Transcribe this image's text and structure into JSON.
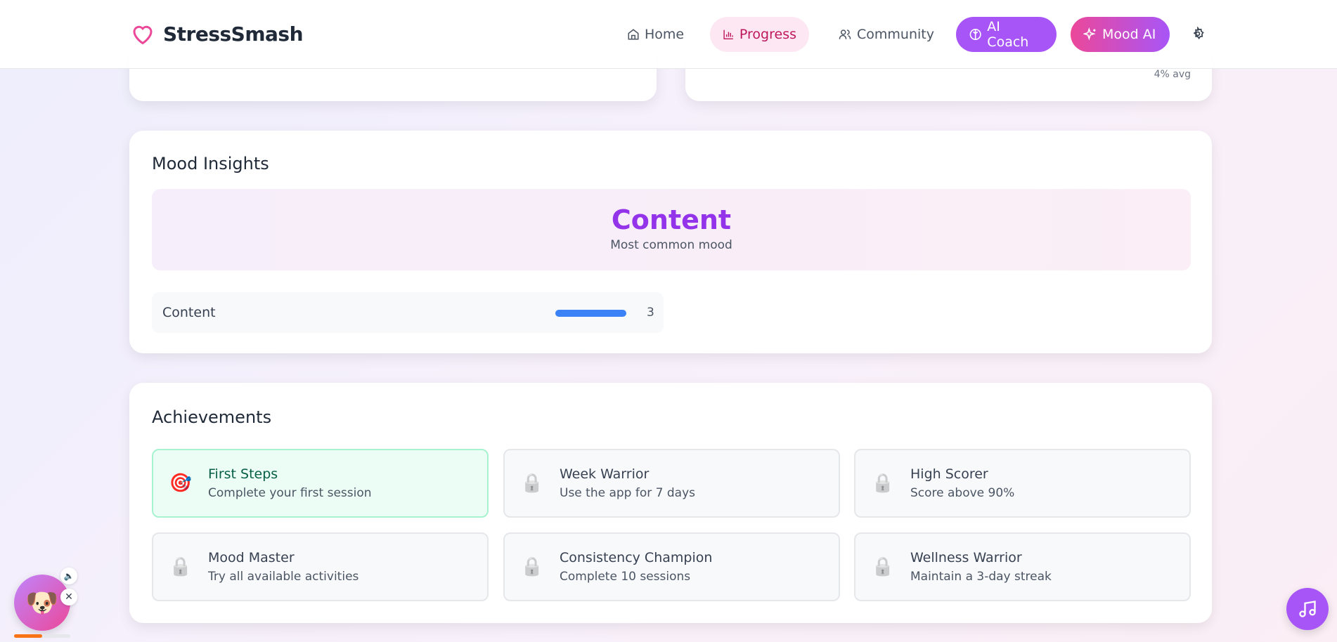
{
  "header": {
    "app_name": "StressSmash",
    "nav": {
      "home": "Home",
      "progress": "Progress",
      "community": "Community",
      "ai_coach": "AI Coach",
      "mood_ai": "Mood AI"
    }
  },
  "top_cards": {
    "right_note": "4% avg"
  },
  "mood_insights": {
    "title": "Mood Insights",
    "top_mood": "Content",
    "top_mood_label": "Most common mood",
    "moods": [
      {
        "name": "Content",
        "count": "3",
        "fill_percent": 100
      }
    ],
    "bar_color": "#3b82f6"
  },
  "achievements": {
    "title": "Achievements",
    "items": [
      {
        "title": "First Steps",
        "desc": "Complete your first session",
        "unlocked": true,
        "icon": "target-icon"
      },
      {
        "title": "Week Warrior",
        "desc": "Use the app for 7 days",
        "unlocked": false,
        "icon": "lock-icon"
      },
      {
        "title": "High Scorer",
        "desc": "Score above 90%",
        "unlocked": false,
        "icon": "lock-icon"
      },
      {
        "title": "Mood Master",
        "desc": "Try all available activities",
        "unlocked": false,
        "icon": "lock-icon"
      },
      {
        "title": "Consistency Champion",
        "desc": "Complete 10 sessions",
        "unlocked": false,
        "icon": "lock-icon"
      },
      {
        "title": "Wellness Warrior",
        "desc": "Maintain a 3-day streak",
        "unlocked": false,
        "icon": "lock-icon"
      }
    ]
  },
  "pet": {
    "progress_percent": 50
  },
  "colors": {
    "accent_purple": "#a855f7",
    "accent_pink": "#ec4899",
    "mood_text": "#9333ea"
  }
}
